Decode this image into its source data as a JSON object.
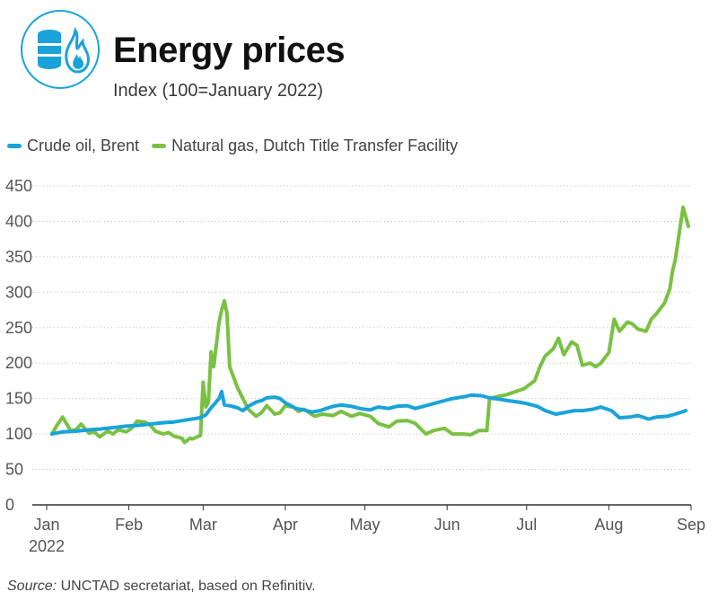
{
  "header": {
    "title": "Energy prices",
    "subtitle": "Index (100=January 2022)",
    "logo_icon": "oil-barrel-flame-icon"
  },
  "legend": {
    "placement": "top-left",
    "items": [
      {
        "label": "Crude oil, Brent",
        "color": "#1aa3d9"
      },
      {
        "label": "Natural gas, Dutch Title Transfer Facility",
        "color": "#7ac143"
      }
    ]
  },
  "source": {
    "label": "Source:",
    "text": "UNCTAD secretariat, based on Refinitiv."
  },
  "chart_data": {
    "type": "line",
    "title": "Energy prices",
    "subtitle": "Index (100=January 2022)",
    "xlabel": "",
    "ylabel": "",
    "ylim": [
      0,
      450
    ],
    "yticks": [
      0,
      50,
      100,
      150,
      200,
      250,
      300,
      350,
      400,
      450
    ],
    "xlim": [
      "2022-01-01",
      "2022-09-01"
    ],
    "xticks": [
      {
        "date": "2022-01-01",
        "label": "Jan",
        "sublabel": "2022"
      },
      {
        "date": "2022-02-01",
        "label": "Feb"
      },
      {
        "date": "2022-03-01",
        "label": "Mar"
      },
      {
        "date": "2022-04-01",
        "label": "Apr"
      },
      {
        "date": "2022-05-01",
        "label": "May"
      },
      {
        "date": "2022-06-01",
        "label": "Jun"
      },
      {
        "date": "2022-07-01",
        "label": "Jul"
      },
      {
        "date": "2022-08-01",
        "label": "Aug"
      },
      {
        "date": "2022-09-01",
        "label": "Sep"
      }
    ],
    "grid": "horizontal",
    "series": [
      {
        "name": "Crude oil, Brent",
        "color": "#1aa3d9",
        "points": [
          [
            "2022-01-03",
            100
          ],
          [
            "2022-01-07",
            103
          ],
          [
            "2022-01-12",
            104
          ],
          [
            "2022-01-17",
            106
          ],
          [
            "2022-01-21",
            107
          ],
          [
            "2022-01-26",
            109
          ],
          [
            "2022-01-31",
            111
          ],
          [
            "2022-02-04",
            112
          ],
          [
            "2022-02-09",
            114
          ],
          [
            "2022-02-14",
            116
          ],
          [
            "2022-02-18",
            117
          ],
          [
            "2022-02-23",
            120
          ],
          [
            "2022-02-28",
            123
          ],
          [
            "2022-03-02",
            127
          ],
          [
            "2022-03-04",
            137
          ],
          [
            "2022-03-07",
            150
          ],
          [
            "2022-03-08",
            160
          ],
          [
            "2022-03-09",
            141
          ],
          [
            "2022-03-11",
            140
          ],
          [
            "2022-03-14",
            137
          ],
          [
            "2022-03-16",
            133
          ],
          [
            "2022-03-18",
            139
          ],
          [
            "2022-03-21",
            145
          ],
          [
            "2022-03-23",
            147
          ],
          [
            "2022-03-25",
            151
          ],
          [
            "2022-03-28",
            152
          ],
          [
            "2022-03-30",
            150
          ],
          [
            "2022-04-01",
            144
          ],
          [
            "2022-04-05",
            136
          ],
          [
            "2022-04-08",
            134
          ],
          [
            "2022-04-11",
            131
          ],
          [
            "2022-04-14",
            133
          ],
          [
            "2022-04-19",
            139
          ],
          [
            "2022-04-22",
            141
          ],
          [
            "2022-04-26",
            139
          ],
          [
            "2022-04-29",
            136
          ],
          [
            "2022-05-03",
            134
          ],
          [
            "2022-05-06",
            138
          ],
          [
            "2022-05-10",
            136
          ],
          [
            "2022-05-13",
            139
          ],
          [
            "2022-05-17",
            140
          ],
          [
            "2022-05-20",
            136
          ],
          [
            "2022-05-24",
            140
          ],
          [
            "2022-05-27",
            143
          ],
          [
            "2022-05-31",
            147
          ],
          [
            "2022-06-03",
            150
          ],
          [
            "2022-06-08",
            153
          ],
          [
            "2022-06-10",
            155
          ],
          [
            "2022-06-14",
            154
          ],
          [
            "2022-06-17",
            151
          ],
          [
            "2022-06-21",
            149
          ],
          [
            "2022-06-24",
            147
          ],
          [
            "2022-06-28",
            145
          ],
          [
            "2022-07-01",
            143
          ],
          [
            "2022-07-05",
            139
          ],
          [
            "2022-07-08",
            133
          ],
          [
            "2022-07-12",
            128
          ],
          [
            "2022-07-15",
            130
          ],
          [
            "2022-07-19",
            133
          ],
          [
            "2022-07-22",
            133
          ],
          [
            "2022-07-26",
            135
          ],
          [
            "2022-07-29",
            138
          ],
          [
            "2022-08-02",
            133
          ],
          [
            "2022-08-05",
            123
          ],
          [
            "2022-08-09",
            124
          ],
          [
            "2022-08-12",
            126
          ],
          [
            "2022-08-16",
            121
          ],
          [
            "2022-08-19",
            124
          ],
          [
            "2022-08-23",
            125
          ],
          [
            "2022-08-26",
            128
          ],
          [
            "2022-08-30",
            133
          ]
        ]
      },
      {
        "name": "Natural gas, Dutch Title Transfer Facility",
        "color": "#7ac143",
        "points": [
          [
            "2022-01-03",
            100
          ],
          [
            "2022-01-05",
            113
          ],
          [
            "2022-01-07",
            124
          ],
          [
            "2022-01-10",
            105
          ],
          [
            "2022-01-12",
            106
          ],
          [
            "2022-01-14",
            114
          ],
          [
            "2022-01-17",
            101
          ],
          [
            "2022-01-19",
            103
          ],
          [
            "2022-01-21",
            96
          ],
          [
            "2022-01-24",
            104
          ],
          [
            "2022-01-26",
            100
          ],
          [
            "2022-01-28",
            106
          ],
          [
            "2022-01-31",
            103
          ],
          [
            "2022-02-02",
            108
          ],
          [
            "2022-02-04",
            118
          ],
          [
            "2022-02-07",
            117
          ],
          [
            "2022-02-09",
            113
          ],
          [
            "2022-02-11",
            104
          ],
          [
            "2022-02-14",
            100
          ],
          [
            "2022-02-16",
            102
          ],
          [
            "2022-02-18",
            97
          ],
          [
            "2022-02-21",
            94
          ],
          [
            "2022-02-22",
            88
          ],
          [
            "2022-02-24",
            94
          ],
          [
            "2022-02-25",
            93
          ],
          [
            "2022-02-28",
            98
          ],
          [
            "2022-03-01",
            173
          ],
          [
            "2022-03-02",
            138
          ],
          [
            "2022-03-03",
            145
          ],
          [
            "2022-03-04",
            216
          ],
          [
            "2022-03-05",
            195
          ],
          [
            "2022-03-07",
            258
          ],
          [
            "2022-03-08",
            275
          ],
          [
            "2022-03-09",
            288
          ],
          [
            "2022-03-10",
            270
          ],
          [
            "2022-03-11",
            195
          ],
          [
            "2022-03-14",
            165
          ],
          [
            "2022-03-16",
            150
          ],
          [
            "2022-03-18",
            135
          ],
          [
            "2022-03-21",
            125
          ],
          [
            "2022-03-23",
            130
          ],
          [
            "2022-03-25",
            140
          ],
          [
            "2022-03-28",
            128
          ],
          [
            "2022-03-30",
            130
          ],
          [
            "2022-04-01",
            140
          ],
          [
            "2022-04-04",
            138
          ],
          [
            "2022-04-06",
            132
          ],
          [
            "2022-04-08",
            135
          ],
          [
            "2022-04-12",
            125
          ],
          [
            "2022-04-15",
            128
          ],
          [
            "2022-04-19",
            126
          ],
          [
            "2022-04-22",
            132
          ],
          [
            "2022-04-26",
            125
          ],
          [
            "2022-04-29",
            129
          ],
          [
            "2022-05-03",
            125
          ],
          [
            "2022-05-06",
            115
          ],
          [
            "2022-05-10",
            110
          ],
          [
            "2022-05-13",
            118
          ],
          [
            "2022-05-17",
            119
          ],
          [
            "2022-05-20",
            115
          ],
          [
            "2022-05-24",
            100
          ],
          [
            "2022-05-27",
            105
          ],
          [
            "2022-05-31",
            108
          ],
          [
            "2022-06-03",
            100
          ],
          [
            "2022-06-07",
            100
          ],
          [
            "2022-06-10",
            99
          ],
          [
            "2022-06-13",
            105
          ],
          [
            "2022-06-16",
            105
          ],
          [
            "2022-06-17",
            150
          ],
          [
            "2022-06-20",
            153
          ],
          [
            "2022-06-23",
            155
          ],
          [
            "2022-06-27",
            160
          ],
          [
            "2022-06-30",
            164
          ],
          [
            "2022-07-04",
            175
          ],
          [
            "2022-07-06",
            195
          ],
          [
            "2022-07-08",
            210
          ],
          [
            "2022-07-11",
            220
          ],
          [
            "2022-07-13",
            235
          ],
          [
            "2022-07-15",
            212
          ],
          [
            "2022-07-18",
            230
          ],
          [
            "2022-07-20",
            225
          ],
          [
            "2022-07-22",
            197
          ],
          [
            "2022-07-25",
            200
          ],
          [
            "2022-07-27",
            195
          ],
          [
            "2022-07-29",
            200
          ],
          [
            "2022-08-01",
            215
          ],
          [
            "2022-08-03",
            262
          ],
          [
            "2022-08-05",
            245
          ],
          [
            "2022-08-08",
            258
          ],
          [
            "2022-08-10",
            255
          ],
          [
            "2022-08-12",
            248
          ],
          [
            "2022-08-15",
            245
          ],
          [
            "2022-08-17",
            262
          ],
          [
            "2022-08-19",
            270
          ],
          [
            "2022-08-22",
            285
          ],
          [
            "2022-08-24",
            305
          ],
          [
            "2022-08-25",
            330
          ],
          [
            "2022-08-26",
            345
          ],
          [
            "2022-08-29",
            420
          ],
          [
            "2022-08-31",
            393
          ]
        ]
      }
    ]
  }
}
